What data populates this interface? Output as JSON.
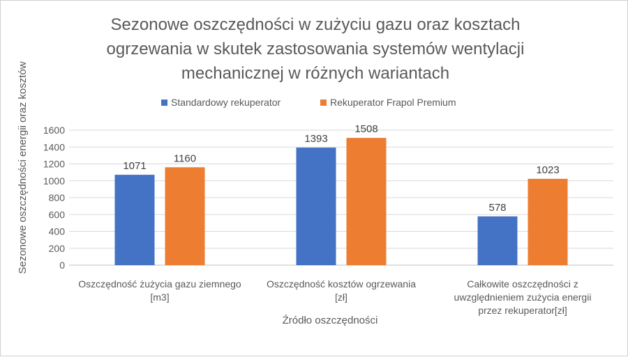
{
  "chart_data": {
    "type": "bar",
    "title_lines": [
      "Sezonowe oszczędności  w zużyciu gazu oraz kosztach",
      "ogrzewania w skutek zastosowania systemów wentylacji",
      "mechanicznej  w różnych wariantach"
    ],
    "xlabel": "Źródło oszczędności",
    "ylabel": "Sezonowe oszczędności energii oraz kosztów",
    "category_lines": [
      [
        "Oszczędność żużycia gazu ziemnego",
        "[m3]"
      ],
      [
        "Oszczędność kosztów ogrzewania",
        "[zł]"
      ],
      [
        "Całkowite oszczędności z",
        "uwzględnieniem zużycia energii",
        "przez rekuperator[zł]"
      ]
    ],
    "series": [
      {
        "name": "Standardowy rekuperator",
        "color": "#4472C4",
        "values": [
          1071,
          1393,
          578
        ]
      },
      {
        "name": "Rekuperator Frapol Premium",
        "color": "#ED7D31",
        "values": [
          1160,
          1508,
          1023
        ]
      }
    ],
    "ylim": [
      0,
      1600
    ],
    "yticks": [
      0,
      200,
      400,
      600,
      800,
      1000,
      1200,
      1400,
      1600
    ],
    "grid": true,
    "legend_position": "top"
  }
}
